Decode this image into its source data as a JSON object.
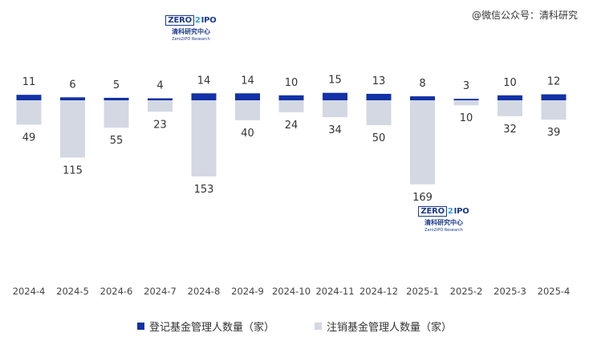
{
  "watermark": "@微信公众号：清科研究",
  "logo": {
    "zero": "ZERO",
    "two": "2",
    "ipo": "IPO",
    "cn": "清科研究中心",
    "en": "Zero2IPO Research"
  },
  "legend": {
    "registered": "登记基金管理人数量（家）",
    "cancelled": "注销基金管理人数量（家）"
  },
  "colors": {
    "registered": "#1232a6",
    "cancelled": "#d3d8e3",
    "label": "#333333",
    "tick": "#444444"
  },
  "chart_data": {
    "type": "bar",
    "categories": [
      "2024-4",
      "2024-5",
      "2024-6",
      "2024-7",
      "2024-8",
      "2024-9",
      "2024-10",
      "2024-11",
      "2024-12",
      "2025-1",
      "2025-2",
      "2025-3",
      "2025-4"
    ],
    "series": [
      {
        "name": "登记基金管理人数量（家）",
        "values": [
          11,
          6,
          5,
          4,
          14,
          14,
          10,
          15,
          13,
          8,
          3,
          10,
          12
        ]
      },
      {
        "name": "注销基金管理人数量（家）",
        "values": [
          49,
          115,
          55,
          23,
          153,
          40,
          24,
          34,
          50,
          169,
          10,
          32,
          39
        ]
      }
    ],
    "legend_position": "bottom",
    "grid": false
  }
}
